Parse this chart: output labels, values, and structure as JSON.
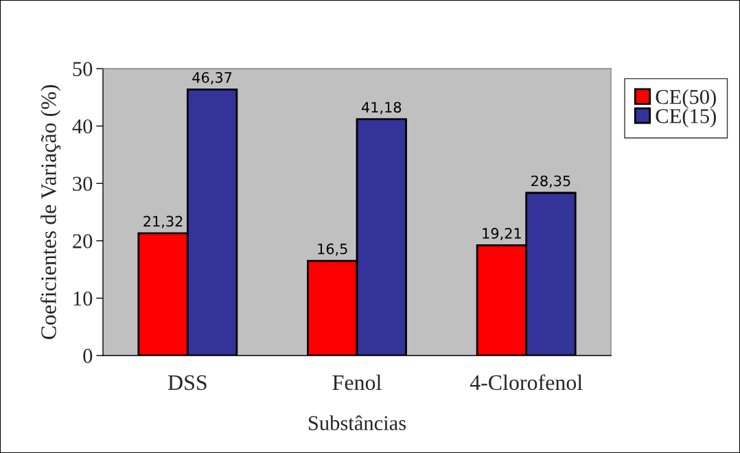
{
  "chart_data": {
    "type": "bar",
    "xlabel": "Substâncias",
    "ylabel": "Coeficientes de Variação (%)",
    "categories": [
      "DSS",
      "Fenol",
      "4-Clorofenol"
    ],
    "series": [
      {
        "name": "CE(50)",
        "color": "#ff0000",
        "values": [
          21.32,
          16.5,
          19.21
        ],
        "value_labels": [
          "21,32",
          "16,5",
          "19,21"
        ]
      },
      {
        "name": "CE(15)",
        "color": "#333399",
        "values": [
          46.37,
          41.18,
          28.35
        ],
        "value_labels": [
          "46,37",
          "41,18",
          "28,35"
        ]
      }
    ],
    "ylim": [
      0,
      50
    ],
    "yticks": [
      0,
      10,
      20,
      30,
      40,
      50
    ],
    "legend": "top right"
  }
}
